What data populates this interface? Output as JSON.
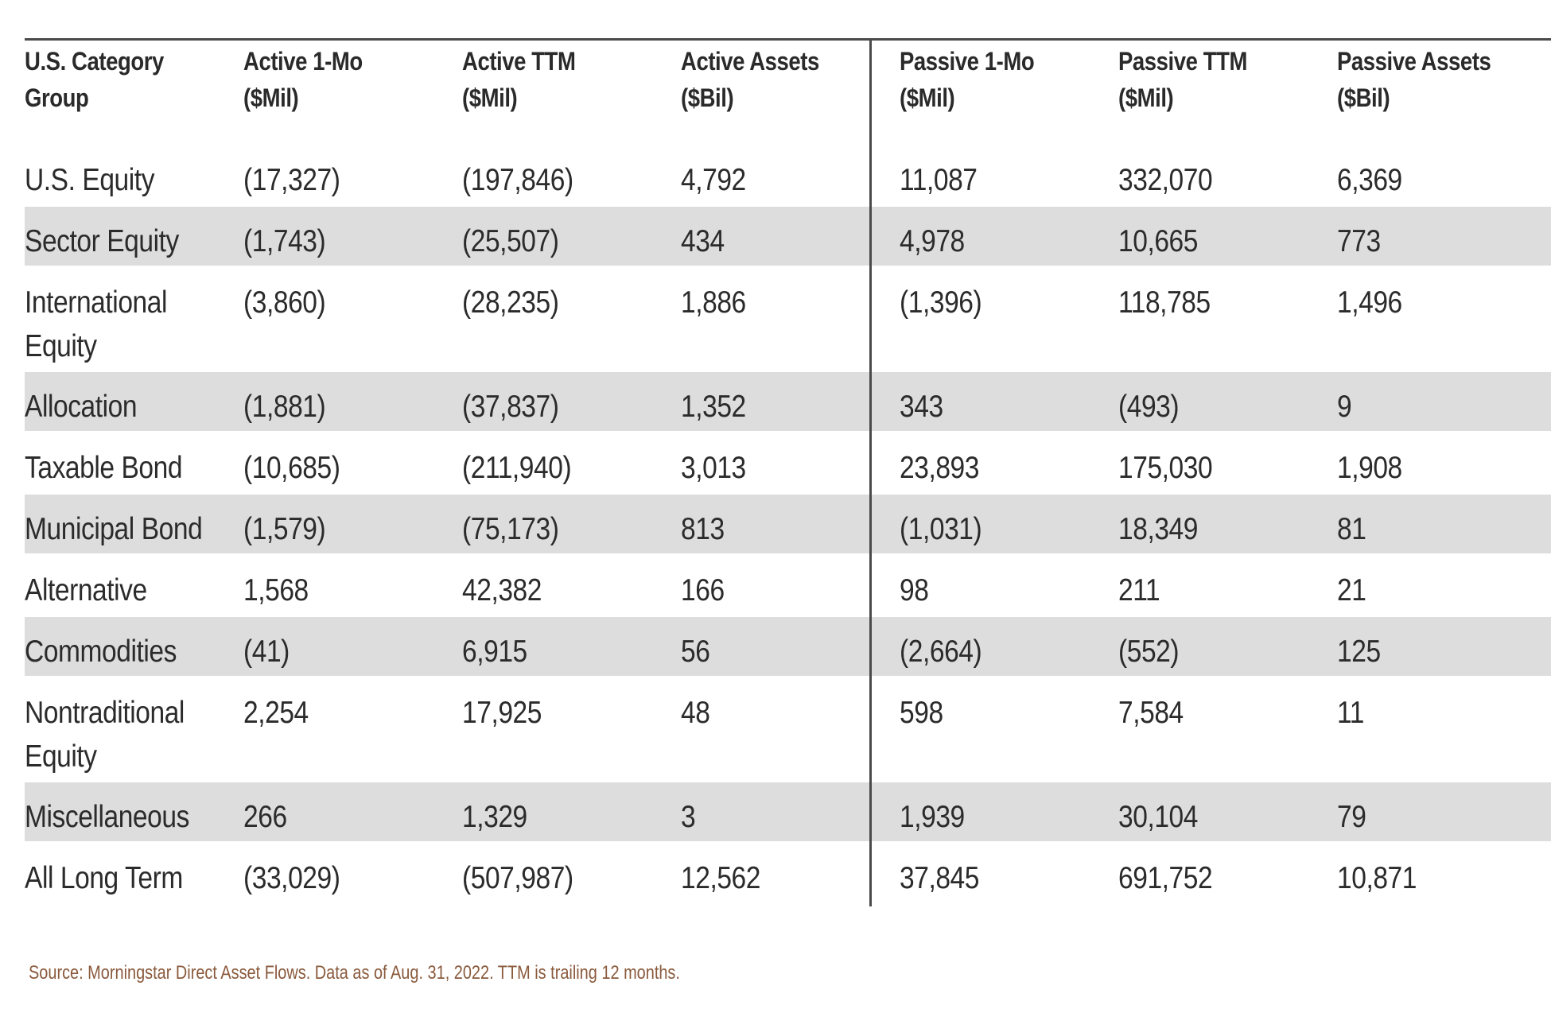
{
  "table": {
    "headers": [
      {
        "line1": "U.S. Category",
        "line2": "Group"
      },
      {
        "line1": "Active 1-Mo",
        "line2": "($Mil)"
      },
      {
        "line1": "Active TTM",
        "line2": "($Mil)"
      },
      {
        "line1": "Active Assets",
        "line2": "($Bil)"
      },
      {
        "line1": "Passive 1-Mo",
        "line2": "($Mil)"
      },
      {
        "line1": "Passive TTM",
        "line2": "($Mil)"
      },
      {
        "line1": "Passive Assets",
        "line2": "($Bil)"
      }
    ],
    "rows": [
      {
        "cells": [
          "U.S. Equity",
          "(17,327)",
          "(197,846)",
          "4,792",
          "11,087",
          "332,070",
          "6,369"
        ],
        "shaded": false,
        "two_line": false
      },
      {
        "cells": [
          "Sector Equity",
          "(1,743)",
          "(25,507)",
          "434",
          "4,978",
          "10,665",
          "773"
        ],
        "shaded": true,
        "two_line": false
      },
      {
        "cells": [
          "International Equity",
          "(3,860)",
          "(28,235)",
          "1,886",
          "(1,396)",
          "118,785",
          "1,496"
        ],
        "shaded": false,
        "two_line": true
      },
      {
        "cells": [
          "Allocation",
          "(1,881)",
          "(37,837)",
          "1,352",
          "343",
          "(493)",
          "9"
        ],
        "shaded": true,
        "two_line": false
      },
      {
        "cells": [
          "Taxable Bond",
          "(10,685)",
          "(211,940)",
          "3,013",
          "23,893",
          "175,030",
          "1,908"
        ],
        "shaded": false,
        "two_line": false
      },
      {
        "cells": [
          "Municipal Bond",
          "(1,579)",
          "(75,173)",
          "813",
          "(1,031)",
          "18,349",
          "81"
        ],
        "shaded": true,
        "two_line": false
      },
      {
        "cells": [
          "Alternative",
          "1,568",
          "42,382",
          "166",
          "98",
          "211",
          "21"
        ],
        "shaded": false,
        "two_line": false
      },
      {
        "cells": [
          "Commodities",
          "(41)",
          "6,915",
          "56",
          "(2,664)",
          "(552)",
          "125"
        ],
        "shaded": true,
        "two_line": false
      },
      {
        "cells": [
          "Nontraditional Equity",
          "2,254",
          "17,925",
          "48",
          "598",
          "7,584",
          "11"
        ],
        "shaded": false,
        "two_line": true
      },
      {
        "cells": [
          "Miscellaneous",
          "266",
          "1,329",
          "3",
          "1,939",
          "30,104",
          "79"
        ],
        "shaded": true,
        "two_line": false
      },
      {
        "cells": [
          "All Long Term",
          "(33,029)",
          "(507,987)",
          "12,562",
          "37,845",
          "691,752",
          "10,871"
        ],
        "shaded": false,
        "two_line": false
      }
    ]
  },
  "source_note": "Source: Morningstar Direct Asset Flows. Data as of Aug. 31, 2022. TTM is trailing 12 months.",
  "colors": {
    "row_shade": "#dddddd",
    "rule": "#4a4a4a",
    "source_text": "#8a5a3c"
  }
}
